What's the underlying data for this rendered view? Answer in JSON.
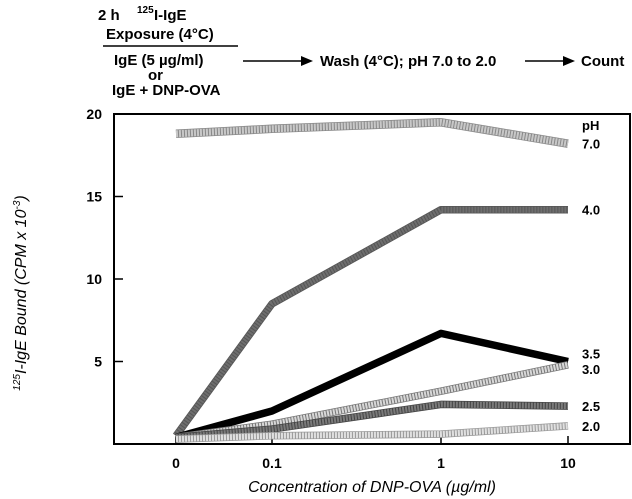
{
  "protocol": {
    "exposure_line1": "2 h",
    "exposure_sup": "125",
    "exposure_line1b": "I-IgE",
    "exposure_line2": "Exposure (4°C)",
    "condition_a": "IgE (5 µg/ml)",
    "condition_or": "or",
    "condition_b": "IgE + DNP-OVA",
    "step_wash": "Wash (4°C); pH 7.0 to 2.0",
    "step_count": "Count"
  },
  "chart_data": {
    "type": "line",
    "title": "",
    "xlabel": "Concentration of DNP-OVA (µg/ml)",
    "ylabel_sup": "125",
    "ylabel": "I-IgE Bound (CPM x 10",
    "ylabel_exp": "-3",
    "ylabel_close": ")",
    "categories": [
      "0",
      "0.1",
      "1",
      "10"
    ],
    "yticks": [
      "5",
      "10",
      "15",
      "20"
    ],
    "ylim": [
      0,
      20
    ],
    "legend_title": "pH",
    "series": [
      {
        "name": "7.0",
        "values": [
          18.8,
          19.1,
          19.5,
          18.2
        ],
        "color": "#c8c8c8",
        "stroke_width": 7,
        "outline": "#888888"
      },
      {
        "name": "4.0",
        "values": [
          0.5,
          8.5,
          14.2,
          14.2
        ],
        "color": "#6e6e6e",
        "stroke_width": 6,
        "outline": "#555555"
      },
      {
        "name": "3.5",
        "values": [
          0.4,
          2.0,
          6.7,
          5.0
        ],
        "color": "#000000",
        "stroke_width": 6,
        "outline": "#000000"
      },
      {
        "name": "3.0",
        "values": [
          0.4,
          1.2,
          3.2,
          4.8
        ],
        "color": "#d8d8d8",
        "stroke_width": 6,
        "outline": "#777777"
      },
      {
        "name": "2.5",
        "values": [
          0.4,
          0.9,
          2.4,
          2.3
        ],
        "color": "#7a7a7a",
        "stroke_width": 6,
        "outline": "#444444"
      },
      {
        "name": "2.0",
        "values": [
          0.3,
          0.5,
          0.6,
          1.1
        ],
        "color": "#e0e0e0",
        "stroke_width": 6,
        "outline": "#999999"
      }
    ]
  }
}
